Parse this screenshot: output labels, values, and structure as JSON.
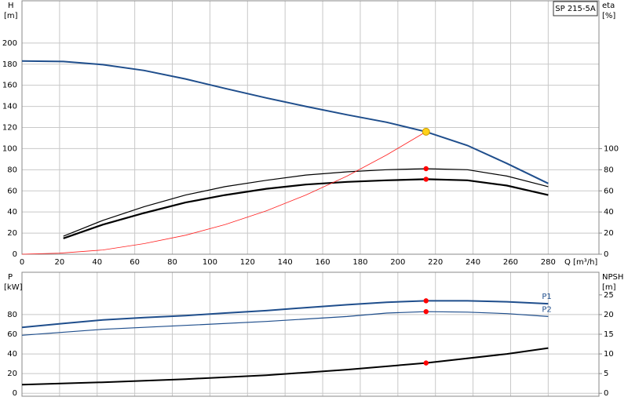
{
  "chart_data": [
    {
      "type": "line",
      "title": "SP 215-5A",
      "ylabel": "H",
      "ylabel_unit": "[m]",
      "y2label": "eta",
      "y2label_unit": "[%]",
      "xlabel": "Q [m³/h]",
      "xlim": [
        0,
        307
      ],
      "xticks": [
        0,
        20,
        40,
        60,
        80,
        100,
        120,
        140,
        160,
        180,
        200,
        220,
        240,
        260,
        280
      ],
      "ylim": [
        0,
        240
      ],
      "yticks": [
        0,
        20,
        40,
        60,
        80,
        100,
        120,
        140,
        160,
        180,
        200
      ],
      "y2lim": [
        0,
        240
      ],
      "y2ticks": [
        0,
        20,
        40,
        60,
        80,
        100
      ],
      "grid": true,
      "series": [
        {
          "color": "#1f4e8c",
          "width": 2,
          "x": [
            0,
            22,
            43,
            65,
            87,
            108,
            130,
            151,
            173,
            194,
            215,
            237,
            258,
            280
          ],
          "values": [
            183,
            182.5,
            179.5,
            174,
            166,
            157,
            148,
            140,
            132,
            125,
            116,
            103,
            86,
            67
          ]
        },
        {
          "color": "#000000",
          "width": 1.2,
          "axis": "y2",
          "x": [
            22,
            43,
            65,
            87,
            108,
            130,
            151,
            173,
            194,
            215,
            237,
            258,
            280
          ],
          "values": [
            17,
            32,
            45,
            56,
            64,
            70,
            75,
            78,
            80,
            81,
            80,
            74,
            64
          ]
        },
        {
          "color": "#000000",
          "width": 2.2,
          "axis": "y2",
          "x": [
            22,
            43,
            65,
            87,
            108,
            130,
            151,
            173,
            194,
            215,
            237,
            258,
            280
          ],
          "values": [
            15,
            28,
            39,
            49,
            56,
            62,
            66,
            68.5,
            70,
            71,
            70,
            65,
            56
          ]
        },
        {
          "color": "#ff2020",
          "width": 0.8,
          "x": [
            0,
            20,
            43,
            65,
            87,
            108,
            130,
            151,
            173,
            194,
            215
          ],
          "values": [
            0,
            1,
            4,
            10,
            18,
            28,
            41,
            56,
            74,
            94,
            116
          ]
        }
      ],
      "markers": [
        {
          "x": 215,
          "y": 116,
          "color": "#ffd11a"
        },
        {
          "x": 215,
          "y": 81,
          "color": "#ff0000",
          "axis": "y2"
        },
        {
          "x": 215,
          "y": 71,
          "color": "#ff0000",
          "axis": "y2"
        }
      ]
    },
    {
      "type": "line",
      "ylabel": "P",
      "ylabel_unit": "[kW]",
      "y2label": "NPSH",
      "y2label_unit": "[m]",
      "xlim": [
        0,
        307
      ],
      "xticks": [
        0,
        20,
        40,
        60,
        80,
        100,
        120,
        140,
        160,
        180,
        200,
        220,
        240,
        260,
        280
      ],
      "ylim": [
        -3,
        123
      ],
      "yticks": [
        0,
        20,
        40,
        60,
        80
      ],
      "y2lim": [
        -0.75,
        30.75
      ],
      "y2ticks": [
        0,
        5,
        10,
        15,
        20,
        25
      ],
      "grid": true,
      "series": [
        {
          "name": "P1",
          "color": "#1f4e8c",
          "width": 2,
          "x": [
            0,
            22,
            43,
            65,
            87,
            108,
            130,
            151,
            173,
            194,
            215,
            237,
            258,
            280
          ],
          "values": [
            67,
            71,
            74.5,
            77,
            79,
            81.5,
            84,
            87,
            90,
            92.5,
            94,
            94,
            93,
            91
          ]
        },
        {
          "name": "P2",
          "color": "#1f4e8c",
          "width": 1.2,
          "x": [
            0,
            43,
            87,
            130,
            173,
            194,
            215,
            237,
            258,
            280
          ],
          "values": [
            59,
            65,
            69,
            73,
            78,
            81.5,
            83,
            82.5,
            81,
            78
          ]
        },
        {
          "color": "#000000",
          "width": 2,
          "axis": "y2",
          "x": [
            0,
            43,
            87,
            130,
            173,
            215,
            258,
            280
          ],
          "values": [
            2.2,
            2.8,
            3.6,
            4.6,
            6,
            7.7,
            10,
            11.5
          ]
        }
      ],
      "markers": [
        {
          "x": 215,
          "y": 94,
          "color": "#ff0000"
        },
        {
          "x": 215,
          "y": 83,
          "color": "#ff0000"
        },
        {
          "x": 215,
          "y": 7.7,
          "color": "#ff0000",
          "axis": "y2"
        }
      ]
    }
  ]
}
